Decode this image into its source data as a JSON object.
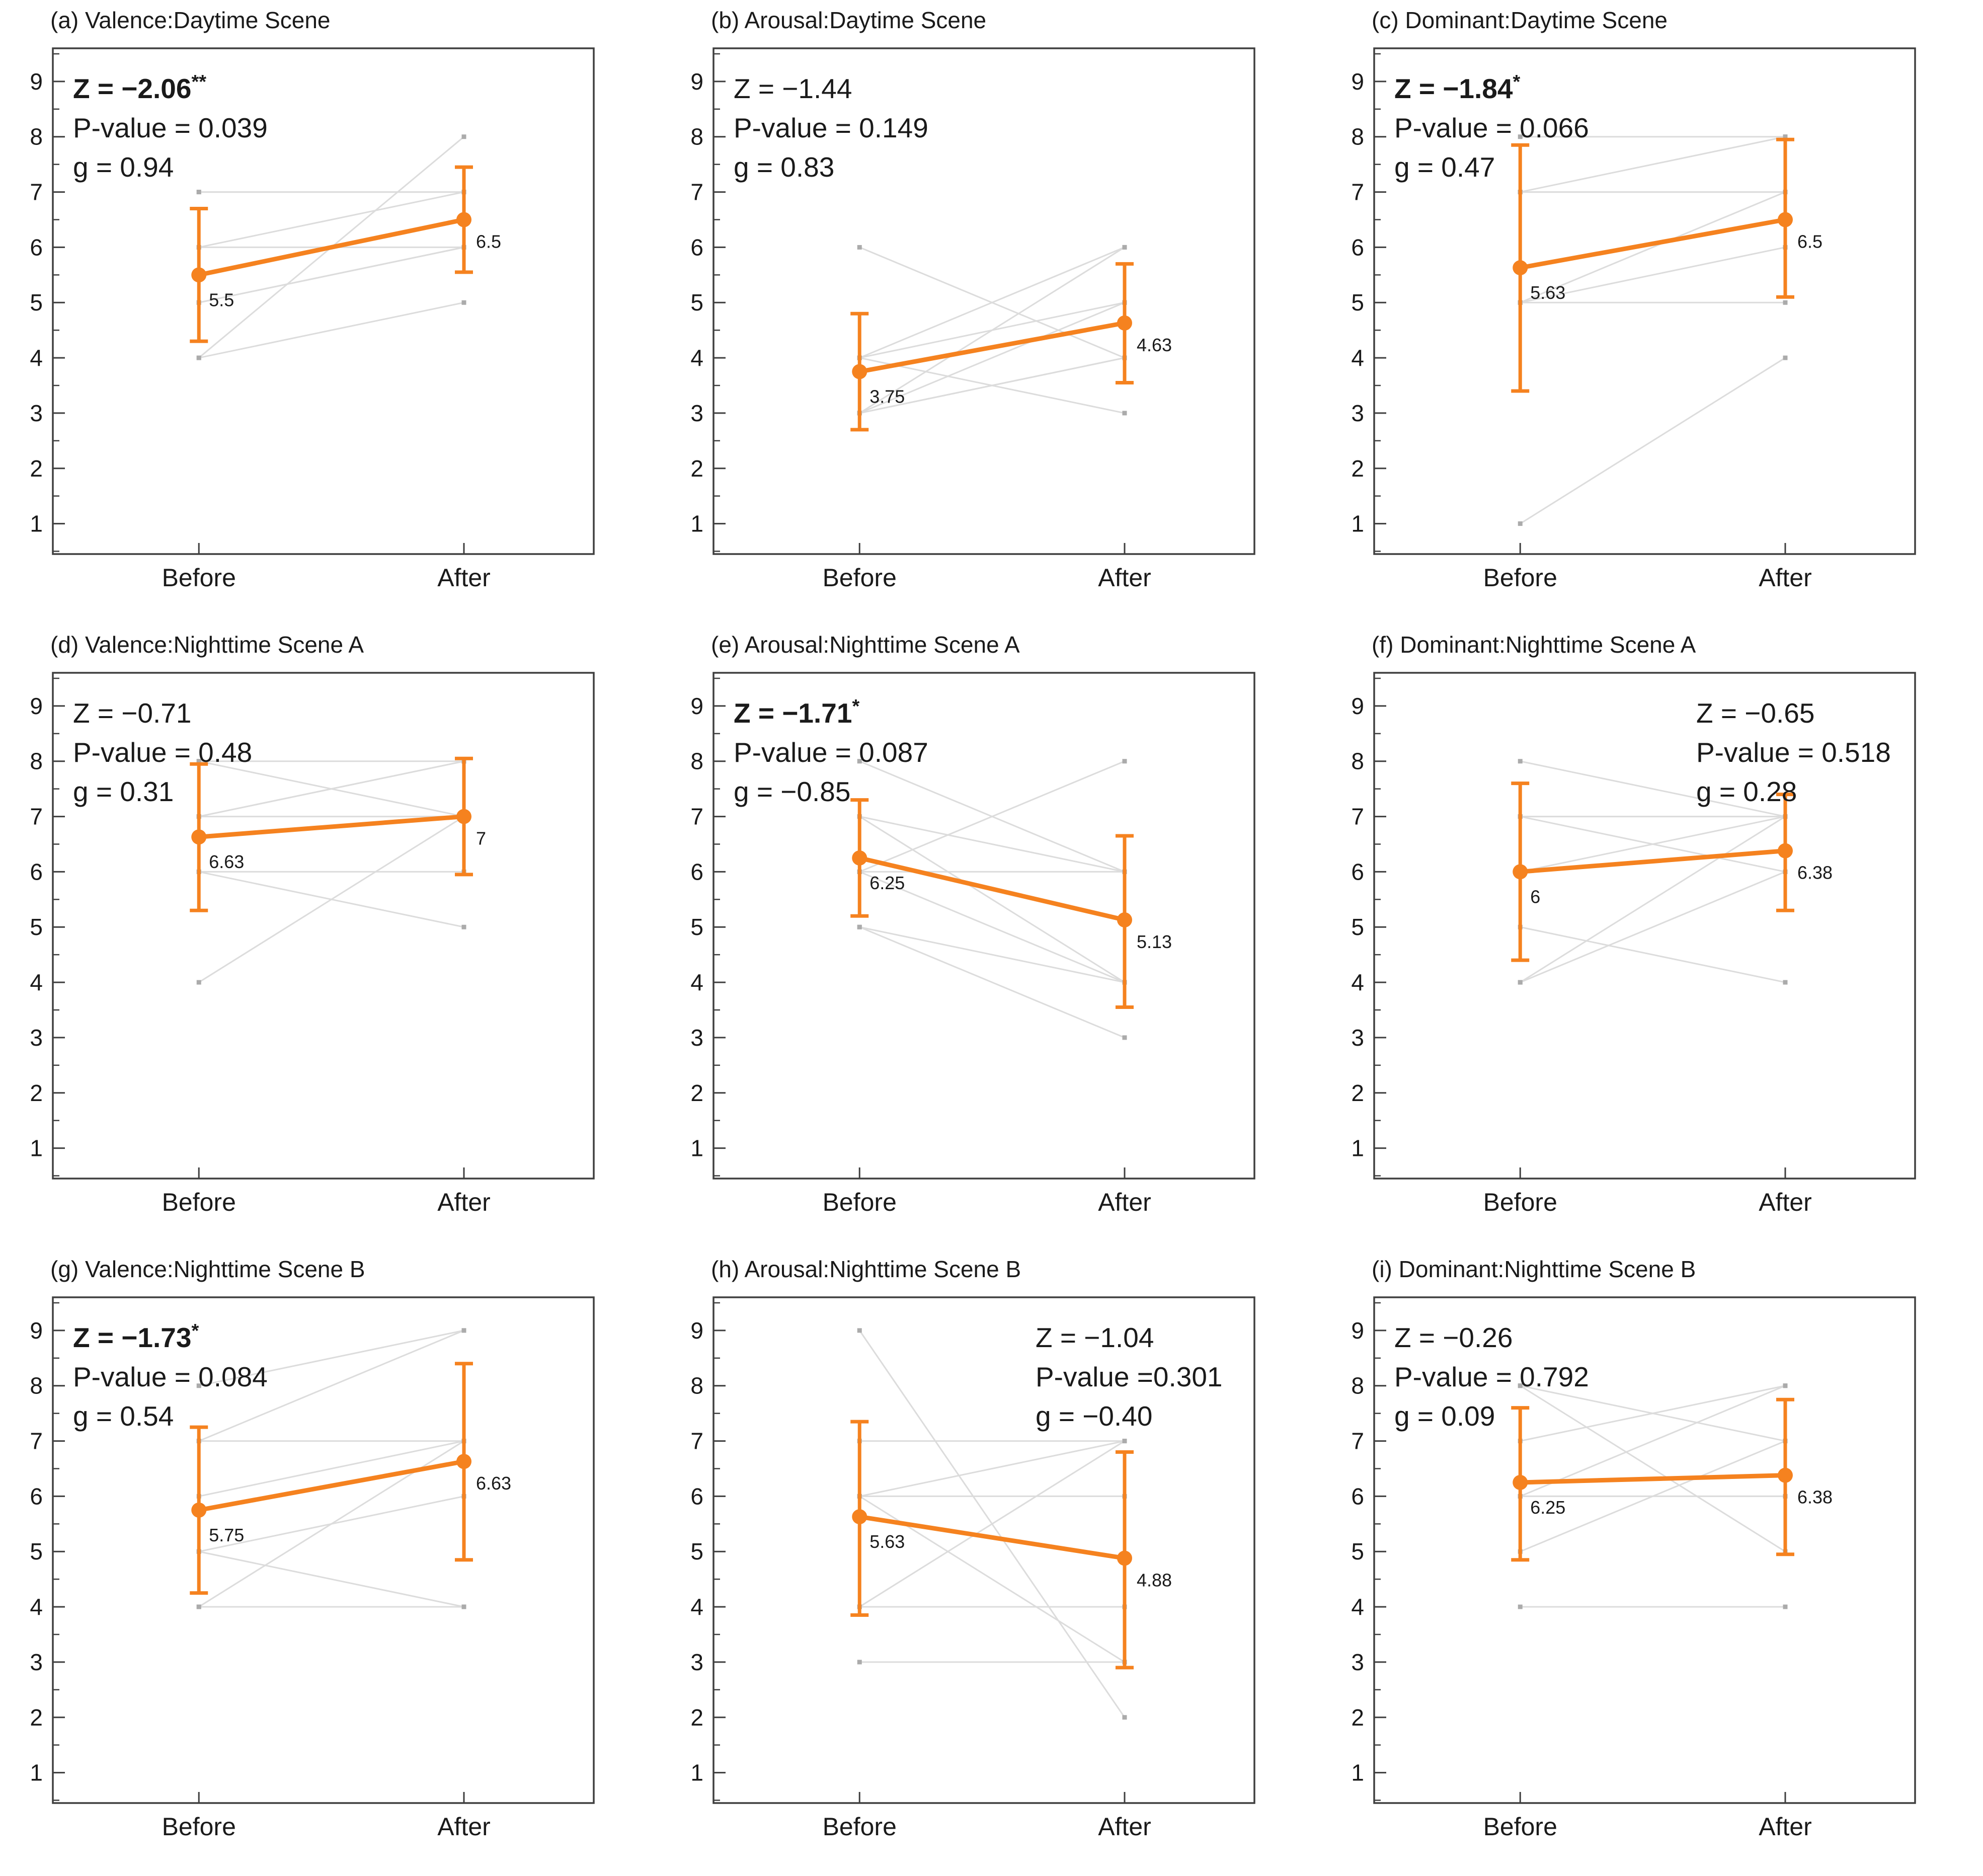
{
  "figure": {
    "x_categories": [
      "Before",
      "After"
    ],
    "y_ticks": [
      1,
      2,
      3,
      4,
      5,
      6,
      7,
      8,
      9
    ],
    "ylim": [
      0.45,
      9.6
    ],
    "colors": {
      "mean": "#F5821F",
      "individual_line": "#DCDCDC",
      "individual_marker": "#ABABAB",
      "frame": "#3F3F3F",
      "text": "#1A1A1A"
    }
  },
  "chart_data": [
    {
      "type": "line",
      "id": "a",
      "title": "(a) Valence:Daytime Scene",
      "stats": {
        "z": "Z = −2.06",
        "stars": "**",
        "p": "P-value = 0.039",
        "g": "g = 0.94",
        "z_bold": true,
        "position": "left"
      },
      "mean": {
        "before": 5.5,
        "after": 6.5
      },
      "mean_labels": {
        "before": "5.5",
        "after": "6.5"
      },
      "error_before": [
        4.3,
        6.7
      ],
      "error_after": [
        5.55,
        7.45
      ],
      "individuals": [
        [
          7,
          7
        ],
        [
          7,
          7
        ],
        [
          6,
          6
        ],
        [
          6,
          7
        ],
        [
          5,
          6
        ],
        [
          5,
          6
        ],
        [
          4,
          8
        ],
        [
          4,
          5
        ]
      ]
    },
    {
      "type": "line",
      "id": "b",
      "title": "(b) Arousal:Daytime Scene",
      "stats": {
        "z": "Z = −1.44",
        "stars": "",
        "p": "P-value = 0.149",
        "g": "g = 0.83",
        "z_bold": false,
        "position": "left"
      },
      "mean": {
        "before": 3.75,
        "after": 4.63
      },
      "mean_labels": {
        "before": "3.75",
        "after": "4.63"
      },
      "error_before": [
        2.7,
        4.8
      ],
      "error_after": [
        3.55,
        5.7
      ],
      "individuals": [
        [
          6,
          4
        ],
        [
          4,
          6
        ],
        [
          4,
          5
        ],
        [
          4,
          3
        ],
        [
          3,
          5
        ],
        [
          3,
          4
        ],
        [
          3,
          4
        ],
        [
          3,
          6
        ]
      ]
    },
    {
      "type": "line",
      "id": "c",
      "title": "(c) Dominant:Daytime Scene",
      "stats": {
        "z": "Z = −1.84",
        "stars": "*",
        "p": "P-value = 0.066",
        "g": "g = 0.47",
        "z_bold": true,
        "position": "left"
      },
      "mean": {
        "before": 5.63,
        "after": 6.5
      },
      "mean_labels": {
        "before": "5.63",
        "after": "6.5"
      },
      "error_before": [
        3.4,
        7.85
      ],
      "error_after": [
        5.1,
        7.95
      ],
      "individuals": [
        [
          8,
          8
        ],
        [
          7,
          8
        ],
        [
          7,
          7
        ],
        [
          7,
          7
        ],
        [
          5,
          7
        ],
        [
          5,
          6
        ],
        [
          5,
          5
        ],
        [
          1,
          4
        ]
      ]
    },
    {
      "type": "line",
      "id": "d",
      "title": "(d) Valence:Nighttime Scene A",
      "stats": {
        "z": "Z = −0.71",
        "stars": "",
        "p": "P-value = 0.48",
        "g": "g = 0.31",
        "z_bold": false,
        "position": "left"
      },
      "mean": {
        "before": 6.63,
        "after": 7
      },
      "mean_labels": {
        "before": "6.63",
        "after": "7"
      },
      "error_before": [
        5.3,
        7.95
      ],
      "error_after": [
        5.95,
        8.05
      ],
      "individuals": [
        [
          8,
          8
        ],
        [
          8,
          7
        ],
        [
          7,
          8
        ],
        [
          7,
          7
        ],
        [
          6,
          6
        ],
        [
          6,
          5
        ],
        [
          4,
          7
        ],
        [
          7,
          8
        ]
      ]
    },
    {
      "type": "line",
      "id": "e",
      "title": "(e) Arousal:Nighttime Scene A",
      "stats": {
        "z": "Z = −1.71",
        "stars": "*",
        "p": "P-value = 0.087",
        "g": "g = −0.85",
        "z_bold": true,
        "position": "left"
      },
      "mean": {
        "before": 6.25,
        "after": 5.13
      },
      "mean_labels": {
        "before": "6.25",
        "after": "5.13"
      },
      "error_before": [
        5.2,
        7.3
      ],
      "error_after": [
        3.55,
        6.65
      ],
      "individuals": [
        [
          8,
          6
        ],
        [
          7,
          6
        ],
        [
          7,
          4
        ],
        [
          6,
          8
        ],
        [
          6,
          4
        ],
        [
          5,
          4
        ],
        [
          5,
          3
        ],
        [
          6,
          6
        ]
      ]
    },
    {
      "type": "line",
      "id": "f",
      "title": "(f) Dominant:Nighttime Scene A",
      "stats": {
        "z": "Z = −0.65",
        "stars": "",
        "p": "P-value = 0.518",
        "g": "g = 0.28",
        "z_bold": false,
        "position": "right"
      },
      "mean": {
        "before": 6,
        "after": 6.38
      },
      "mean_labels": {
        "before": "6",
        "after": "6.38"
      },
      "error_before": [
        4.4,
        7.6
      ],
      "error_after": [
        5.3,
        7.4
      ],
      "individuals": [
        [
          8,
          7
        ],
        [
          7,
          7
        ],
        [
          6,
          7
        ],
        [
          5,
          4
        ],
        [
          4,
          7
        ],
        [
          4,
          6
        ],
        [
          7,
          7
        ],
        [
          7,
          6
        ]
      ]
    },
    {
      "type": "line",
      "id": "g",
      "title": "(g) Valence:Nighttime Scene B",
      "stats": {
        "z": "Z = −1.73",
        "stars": "*",
        "p": "P-value = 0.084",
        "g": "g = 0.54",
        "z_bold": true,
        "position": "left"
      },
      "mean": {
        "before": 5.75,
        "after": 6.63
      },
      "mean_labels": {
        "before": "5.75",
        "after": "6.63"
      },
      "error_before": [
        4.25,
        7.25
      ],
      "error_after": [
        4.85,
        8.4
      ],
      "individuals": [
        [
          8,
          9
        ],
        [
          7,
          9
        ],
        [
          7,
          7
        ],
        [
          6,
          7
        ],
        [
          5,
          6
        ],
        [
          4,
          7
        ],
        [
          4,
          4
        ],
        [
          5,
          4
        ]
      ]
    },
    {
      "type": "line",
      "id": "h",
      "title": "(h) Arousal:Nighttime Scene B",
      "stats": {
        "z": "Z = −1.04",
        "stars": "",
        "p": "P-value =0.301",
        "g": "g = −0.40",
        "z_bold": false,
        "position": "right"
      },
      "mean": {
        "before": 5.63,
        "after": 4.88
      },
      "mean_labels": {
        "before": "5.63",
        "after": "4.88"
      },
      "error_before": [
        3.85,
        7.35
      ],
      "error_after": [
        2.9,
        6.8
      ],
      "individuals": [
        [
          9,
          2
        ],
        [
          7,
          7
        ],
        [
          6,
          7
        ],
        [
          6,
          6
        ],
        [
          6,
          3
        ],
        [
          4,
          7
        ],
        [
          4,
          4
        ],
        [
          3,
          3
        ]
      ]
    },
    {
      "type": "line",
      "id": "i",
      "title": "(i) Dominant:Nighttime Scene B",
      "stats": {
        "z": "Z = −0.26",
        "stars": "",
        "p": "P-value = 0.792",
        "g": "g = 0.09",
        "z_bold": false,
        "position": "left"
      },
      "mean": {
        "before": 6.25,
        "after": 6.38
      },
      "mean_labels": {
        "before": "6.25",
        "after": "6.38"
      },
      "error_before": [
        4.85,
        7.6
      ],
      "error_after": [
        4.95,
        7.75
      ],
      "individuals": [
        [
          8,
          7
        ],
        [
          8,
          5
        ],
        [
          7,
          8
        ],
        [
          6,
          8
        ],
        [
          6,
          6
        ],
        [
          5,
          7
        ],
        [
          6,
          6
        ],
        [
          4,
          4
        ]
      ]
    }
  ]
}
